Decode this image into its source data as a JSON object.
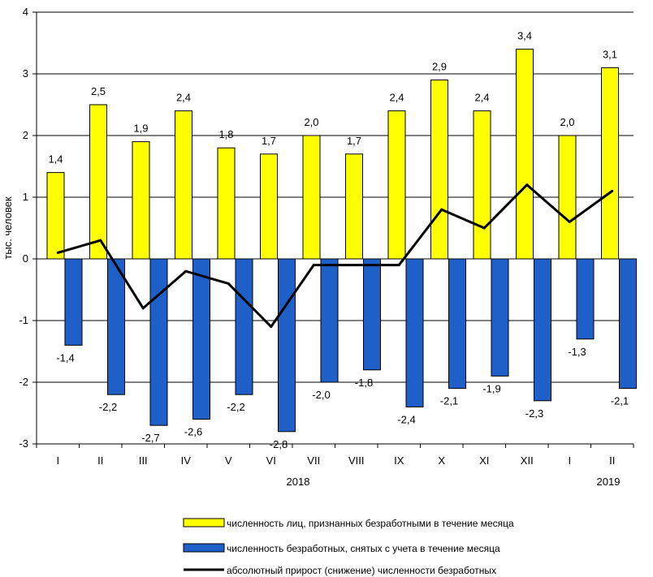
{
  "chart_data": {
    "type": "bar",
    "ylabel": "тыс. человек",
    "ylim": [
      -3,
      4
    ],
    "yticks": [
      "4",
      "3",
      "2",
      "1",
      "0",
      "-1",
      "-2",
      "-3"
    ],
    "categories": [
      "I",
      "II",
      "III",
      "IV",
      "V",
      "VI",
      "VII",
      "VIII",
      "IX",
      "X",
      "XI",
      "XII",
      "I",
      "II"
    ],
    "year_labels": [
      "2018",
      "2019"
    ],
    "grid": true,
    "series": [
      {
        "name": "численность лиц, признанных безработными в течение месяца",
        "kind": "bar",
        "color": "#ffff00",
        "values": [
          1.4,
          2.5,
          1.9,
          2.4,
          1.8,
          1.7,
          2.0,
          1.7,
          2.4,
          2.9,
          2.4,
          3.4,
          2.0,
          3.1
        ],
        "labels": [
          "1,4",
          "2,5",
          "1,9",
          "2,4",
          "1,8",
          "1,7",
          "2,0",
          "1,7",
          "2,4",
          "2,9",
          "2,4",
          "3,4",
          "2,0",
          "3,1"
        ]
      },
      {
        "name": "численность безработных, снятых с учета в течение месяца",
        "kind": "bar",
        "color": "#1f5fc8",
        "values": [
          -1.4,
          -2.2,
          -2.7,
          -2.6,
          -2.2,
          -2.8,
          -2.0,
          -1.8,
          -2.4,
          -2.1,
          -1.9,
          -2.3,
          -1.3,
          -2.1
        ],
        "labels": [
          "-1,4",
          "-2,2",
          "-2,7",
          "-2,6",
          "-2,2",
          "-2,8",
          "-2,0",
          "-1,8",
          "-2,4",
          "-2,1",
          "-1,9",
          "-2,3",
          "-1,3",
          "-2,1"
        ]
      },
      {
        "name": "абсолютный прирост (снижение) численности безработных",
        "kind": "line",
        "color": "#000000",
        "values": [
          0.1,
          0.3,
          -0.8,
          -0.2,
          -0.4,
          -1.1,
          -0.1,
          -0.1,
          -0.1,
          0.8,
          0.5,
          1.2,
          0.6,
          1.1
        ]
      }
    ],
    "legend_position": "bottom"
  }
}
